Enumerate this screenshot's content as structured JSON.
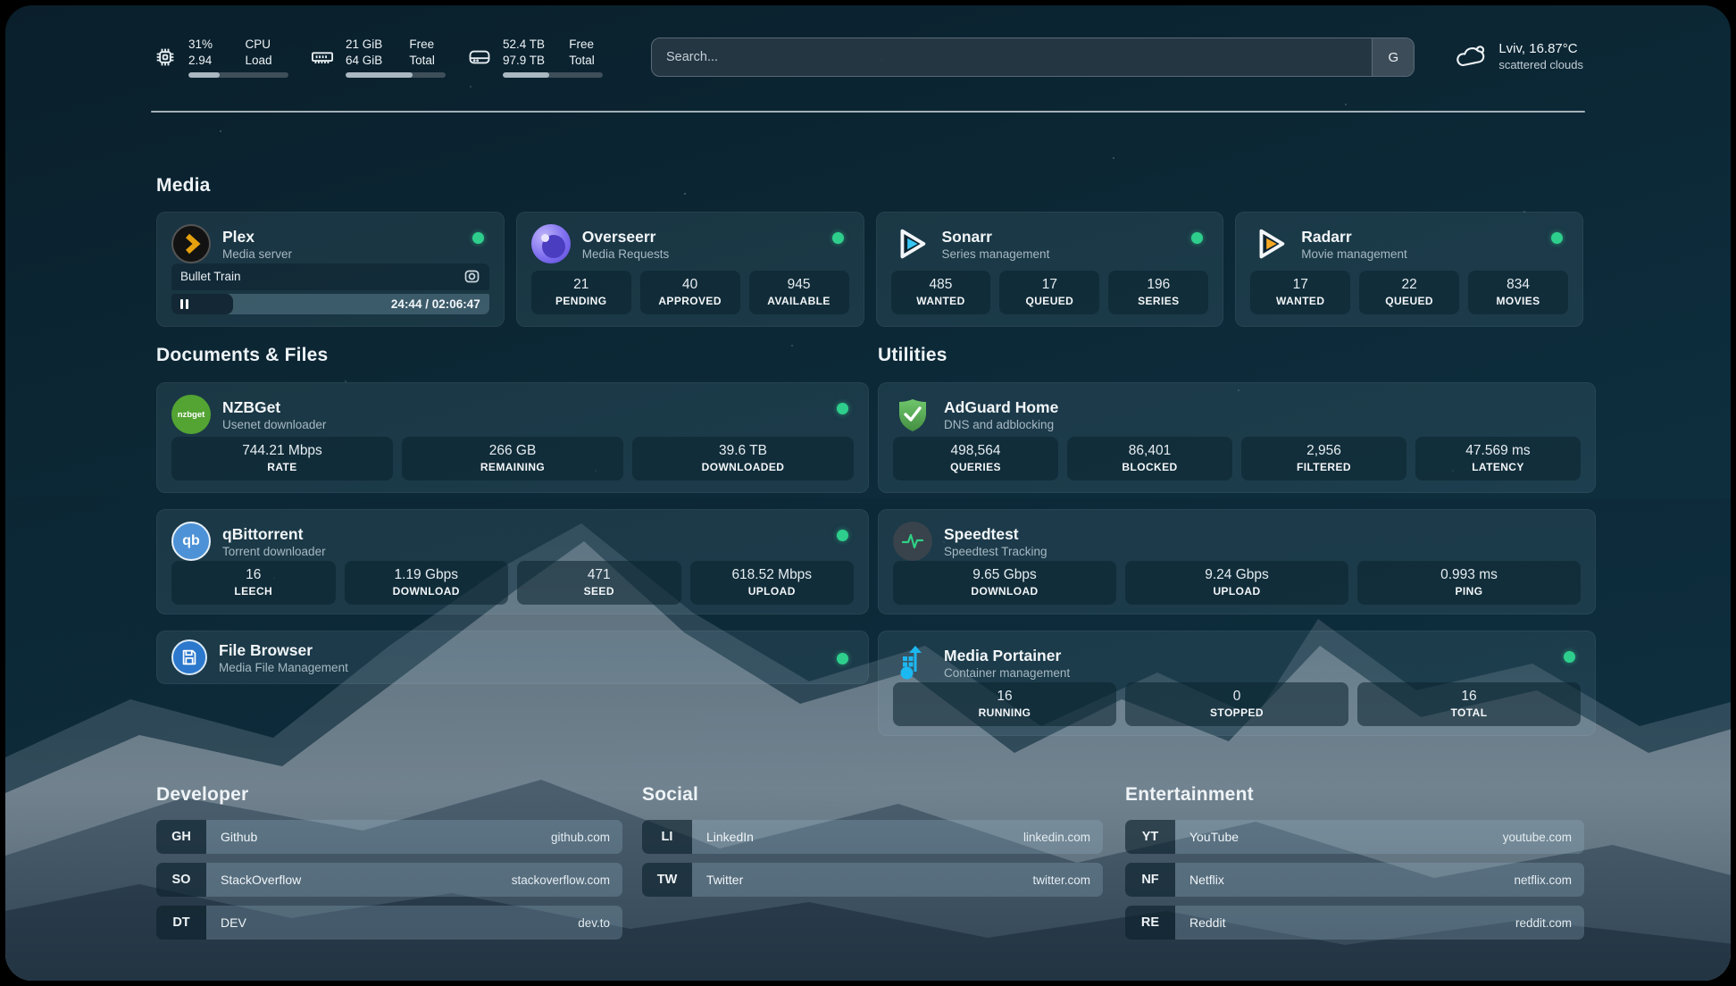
{
  "colors": {
    "status_online": "#2ecf8c",
    "plex_gold": "#e5a00d",
    "sonarr_blue": "#38c6f4",
    "radarr_orange": "#f7a823",
    "background_teal": "#0c2836"
  },
  "header": {
    "resources": [
      {
        "icon": "cpu-icon",
        "values": [
          "31%",
          "2.94"
        ],
        "labels": [
          "CPU",
          "Load"
        ],
        "progress_pct": 31
      },
      {
        "icon": "ram-icon",
        "values": [
          "21 GiB",
          "64 GiB"
        ],
        "labels": [
          "Free",
          "Total"
        ],
        "progress_pct": 67
      },
      {
        "icon": "disk-icon",
        "values": [
          "52.4 TB",
          "97.9 TB"
        ],
        "labels": [
          "Free",
          "Total"
        ],
        "progress_pct": 46
      }
    ],
    "search": {
      "placeholder": "Search...",
      "engine_button": "G"
    },
    "weather": {
      "location_temp": "Lviv, 16.87°C",
      "condition": "scattered clouds"
    }
  },
  "sections": {
    "media": "Media",
    "documents": "Documents & Files",
    "utilities": "Utilities",
    "developer": "Developer",
    "social": "Social",
    "entertainment": "Entertainment"
  },
  "apps": {
    "plex": {
      "name": "Plex",
      "desc": "Media server",
      "now_playing": "Bullet Train",
      "time": "24:44 / 02:06:47",
      "progress_pct": 19.5
    },
    "overseerr": {
      "name": "Overseerr",
      "desc": "Media Requests",
      "stats": [
        {
          "value": "21",
          "label": "PENDING"
        },
        {
          "value": "40",
          "label": "APPROVED"
        },
        {
          "value": "945",
          "label": "AVAILABLE"
        }
      ]
    },
    "sonarr": {
      "name": "Sonarr",
      "desc": "Series management",
      "stats": [
        {
          "value": "485",
          "label": "WANTED"
        },
        {
          "value": "17",
          "label": "QUEUED"
        },
        {
          "value": "196",
          "label": "SERIES"
        }
      ]
    },
    "radarr": {
      "name": "Radarr",
      "desc": "Movie management",
      "stats": [
        {
          "value": "17",
          "label": "WANTED"
        },
        {
          "value": "22",
          "label": "QUEUED"
        },
        {
          "value": "834",
          "label": "MOVIES"
        }
      ]
    },
    "nzbget": {
      "name": "NZBGet",
      "desc": "Usenet downloader",
      "icon_text": "nzbget",
      "stats": [
        {
          "value": "744.21 Mbps",
          "label": "RATE"
        },
        {
          "value": "266 GB",
          "label": "REMAINING"
        },
        {
          "value": "39.6 TB",
          "label": "DOWNLOADED"
        }
      ]
    },
    "qbittorrent": {
      "name": "qBittorrent",
      "desc": "Torrent downloader",
      "icon_text": "qb",
      "stats": [
        {
          "value": "16",
          "label": "LEECH"
        },
        {
          "value": "1.19 Gbps",
          "label": "DOWNLOAD"
        },
        {
          "value": "471",
          "label": "SEED"
        },
        {
          "value": "618.52 Mbps",
          "label": "UPLOAD"
        }
      ]
    },
    "filebrowser": {
      "name": "File Browser",
      "desc": "Media File Management"
    },
    "adguard": {
      "name": "AdGuard Home",
      "desc": "DNS and adblocking",
      "stats": [
        {
          "value": "498,564",
          "label": "QUERIES"
        },
        {
          "value": "86,401",
          "label": "BLOCKED"
        },
        {
          "value": "2,956",
          "label": "FILTERED"
        },
        {
          "value": "47.569 ms",
          "label": "LATENCY"
        }
      ]
    },
    "speedtest": {
      "name": "Speedtest",
      "desc": "Speedtest Tracking",
      "stats": [
        {
          "value": "9.65 Gbps",
          "label": "DOWNLOAD"
        },
        {
          "value": "9.24 Gbps",
          "label": "UPLOAD"
        },
        {
          "value": "0.993 ms",
          "label": "PING"
        }
      ]
    },
    "portainer": {
      "name": "Media Portainer",
      "desc": "Container management",
      "stats": [
        {
          "value": "16",
          "label": "RUNNING"
        },
        {
          "value": "0",
          "label": "STOPPED"
        },
        {
          "value": "16",
          "label": "TOTAL"
        }
      ]
    }
  },
  "bookmarks": {
    "developer": [
      {
        "abbr": "GH",
        "name": "Github",
        "url": "github.com"
      },
      {
        "abbr": "SO",
        "name": "StackOverflow",
        "url": "stackoverflow.com"
      },
      {
        "abbr": "DT",
        "name": "DEV",
        "url": "dev.to"
      }
    ],
    "social": [
      {
        "abbr": "LI",
        "name": "LinkedIn",
        "url": "linkedin.com"
      },
      {
        "abbr": "TW",
        "name": "Twitter",
        "url": "twitter.com"
      }
    ],
    "entertainment": [
      {
        "abbr": "YT",
        "name": "YouTube",
        "url": "youtube.com"
      },
      {
        "abbr": "NF",
        "name": "Netflix",
        "url": "netflix.com"
      },
      {
        "abbr": "RE",
        "name": "Reddit",
        "url": "reddit.com"
      }
    ]
  }
}
